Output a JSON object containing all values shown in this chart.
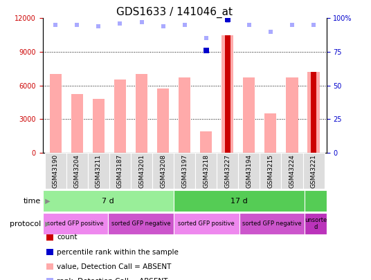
{
  "title": "GDS1633 / 141046_at",
  "samples": [
    "GSM43190",
    "GSM43204",
    "GSM43211",
    "GSM43187",
    "GSM43201",
    "GSM43208",
    "GSM43197",
    "GSM43218",
    "GSM43227",
    "GSM43194",
    "GSM43215",
    "GSM43224",
    "GSM43221"
  ],
  "values_absent": [
    7000,
    5200,
    4800,
    6500,
    7000,
    5700,
    6700,
    1900,
    10500,
    6700,
    3500,
    6700,
    7200
  ],
  "ranks_absent": [
    95,
    95,
    94,
    96,
    97,
    94,
    95,
    85,
    98,
    95,
    90,
    95,
    95
  ],
  "count_value": [
    0,
    0,
    0,
    0,
    0,
    0,
    0,
    0,
    10500,
    0,
    0,
    0,
    7200
  ],
  "percentile_rank": [
    0,
    0,
    0,
    0,
    0,
    0,
    0,
    76,
    99,
    0,
    0,
    0,
    0
  ],
  "count_color": "#cc0000",
  "percentile_color": "#0000cc",
  "absent_value_color": "#ffaaaa",
  "absent_rank_color": "#aaaaff",
  "ylim_left": [
    0,
    12000
  ],
  "ylim_right": [
    0,
    100
  ],
  "yticks_left": [
    0,
    3000,
    6000,
    9000,
    12000
  ],
  "yticks_right": [
    0,
    25,
    50,
    75,
    100
  ],
  "ytick_labels_left": [
    "0",
    "3000",
    "6000",
    "9000",
    "12000"
  ],
  "ytick_labels_right": [
    "0",
    "25",
    "50",
    "75",
    "100%"
  ],
  "time_groups": [
    {
      "label": "7 d",
      "start": 0,
      "end": 6,
      "color": "#99ee99"
    },
    {
      "label": "17 d",
      "start": 6,
      "end": 12,
      "color": "#55cc55"
    },
    {
      "label": "",
      "start": 12,
      "end": 13,
      "color": "#55cc55"
    }
  ],
  "protocol_groups": [
    {
      "label": "sorted GFP positive",
      "start": 0,
      "end": 3,
      "color": "#ee88ee"
    },
    {
      "label": "sorted GFP negative",
      "start": 3,
      "end": 6,
      "color": "#cc55cc"
    },
    {
      "label": "sorted GFP positive",
      "start": 6,
      "end": 9,
      "color": "#ee88ee"
    },
    {
      "label": "sorted GFP negative",
      "start": 9,
      "end": 12,
      "color": "#cc55cc"
    },
    {
      "label": "unsorte\nd",
      "start": 12,
      "end": 13,
      "color": "#bb33bb"
    }
  ],
  "bar_width": 0.55,
  "marker_size": 6,
  "rank_marker_size": 5,
  "grid_dotted_color": "#000000",
  "background_color": "#ffffff",
  "xtick_bg": "#dddddd",
  "title_fontsize": 11,
  "tick_fontsize": 7,
  "label_fontsize": 7
}
